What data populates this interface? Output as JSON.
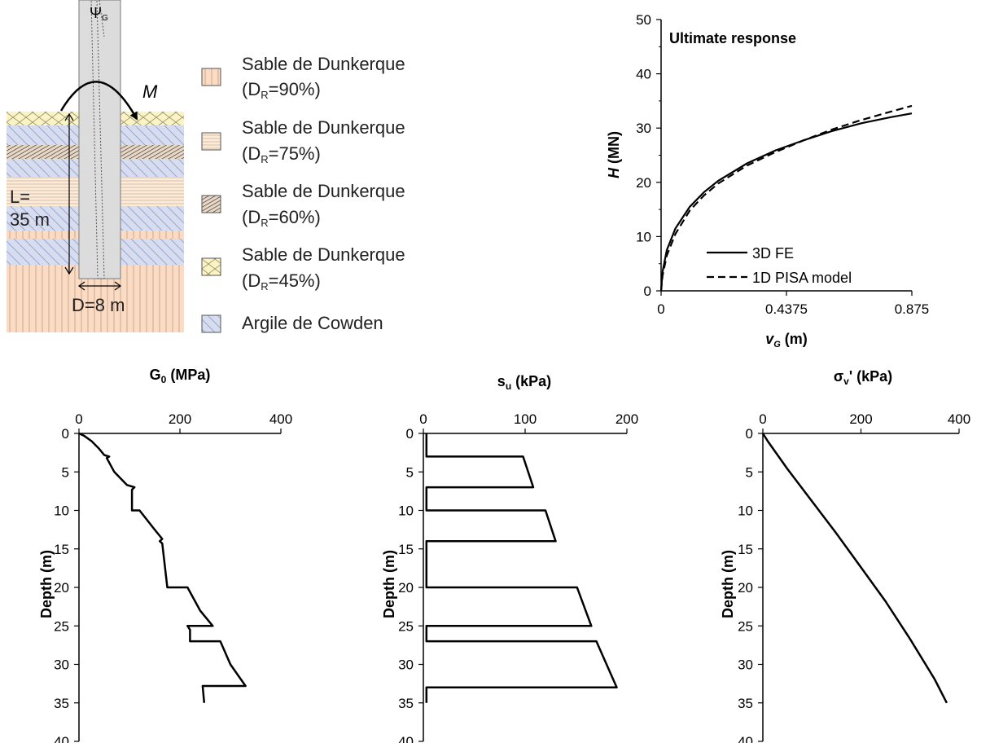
{
  "colors": {
    "sand_90": "#fadbc4",
    "sand_75": "#fcebd8",
    "sand_60": "#ead8c6",
    "sand_45": "#fbf3c3",
    "clay": "#d7dcee",
    "pile": "#dcdcdc",
    "line": "#000000",
    "hatch": "#8ea0c8"
  },
  "schematic": {
    "psi_label": "ΨG",
    "psi_main": "Ψ",
    "psi_sub": "G",
    "moment_label": "M",
    "length_label_1": "L=",
    "length_label_2": "35 m",
    "diameter_label": "D=8 m",
    "legend": [
      {
        "title": "Sable de Dunkerque",
        "detail_pre": "(D",
        "detail_sub": "R",
        "detail_post": "=90%)",
        "swatch": "sand-90-swatch"
      },
      {
        "title": "Sable de Dunkerque",
        "detail_pre": "(D",
        "detail_sub": "R",
        "detail_post": "=75%)",
        "swatch": "sand-75-swatch"
      },
      {
        "title": "Sable de Dunkerque",
        "detail_pre": "(D",
        "detail_sub": "R",
        "detail_post": "=60%)",
        "swatch": "sand-60-swatch"
      },
      {
        "title": "Sable de Dunkerque",
        "detail_pre": "(D",
        "detail_sub": "R",
        "detail_post": "=45%)",
        "swatch": "sand-45-swatch"
      },
      {
        "title": "Argile de Cowden",
        "detail_pre": "",
        "detail_sub": "",
        "detail_post": "",
        "swatch": "clay-swatch"
      }
    ]
  },
  "chart_data": [
    {
      "type": "line",
      "title": "Ultimate response",
      "xlabel_main": "v",
      "xlabel_sub": "G",
      "xlabel_unit": " (m)",
      "ylabel_main": "H",
      "ylabel_unit": " (MN)",
      "xlim": [
        0,
        0.875
      ],
      "ylim": [
        0,
        50
      ],
      "xticks": [
        "0",
        "0.4375",
        "0.875"
      ],
      "xtick_values": [
        0,
        0.4375,
        0.875
      ],
      "yticks": [
        "0",
        "10",
        "20",
        "30",
        "40",
        "50"
      ],
      "ytick_values": [
        0,
        10,
        20,
        30,
        40,
        50
      ],
      "legend_position": "bottom-right",
      "series": [
        {
          "name": "3D FE",
          "style": "solid",
          "x": [
            0,
            0.005,
            0.02,
            0.05,
            0.1,
            0.15,
            0.2,
            0.3,
            0.4,
            0.5,
            0.6,
            0.7,
            0.8,
            0.875
          ],
          "y": [
            0,
            3.5,
            7.5,
            11.5,
            15.5,
            18.2,
            20.3,
            23.5,
            25.9,
            27.8,
            29.5,
            30.9,
            32.0,
            32.7
          ]
        },
        {
          "name": "1D PISA model",
          "style": "dashed",
          "x": [
            0,
            0.005,
            0.02,
            0.05,
            0.1,
            0.15,
            0.2,
            0.3,
            0.4,
            0.5,
            0.6,
            0.7,
            0.8,
            0.875
          ],
          "y": [
            0,
            2.8,
            6.5,
            10.5,
            14.8,
            17.6,
            19.8,
            23.1,
            25.6,
            27.8,
            29.8,
            31.5,
            33.0,
            34.1
          ]
        }
      ]
    },
    {
      "type": "line",
      "title_main": "G",
      "title_sub": "0",
      "title_unit": " (MPa)",
      "ylabel": "Depth (m)",
      "xlim": [
        0,
        400
      ],
      "ylim": [
        0,
        40
      ],
      "xticks": [
        "0",
        "200",
        "400"
      ],
      "xtick_values": [
        0,
        200,
        400
      ],
      "yticks": [
        "0",
        "5",
        "10",
        "15",
        "20",
        "25",
        "30",
        "35",
        "40"
      ],
      "ytick_values": [
        0,
        5,
        10,
        15,
        20,
        25,
        30,
        35,
        40
      ],
      "series": [
        {
          "x": [
            0,
            10,
            25,
            40,
            50,
            60,
            55,
            70,
            95,
            110,
            105,
            105,
            120,
            150,
            165,
            160,
            165,
            175,
            215,
            240,
            265,
            215,
            220,
            220,
            280,
            300,
            330,
            245,
            248
          ],
          "y": [
            0,
            0.3,
            1,
            2,
            2.8,
            3,
            3.2,
            5,
            6.7,
            7,
            7.3,
            10,
            10,
            12.5,
            13.7,
            14,
            14.3,
            20,
            20,
            23,
            25,
            25,
            25.5,
            27,
            27,
            30,
            32.8,
            32.8,
            35
          ]
        }
      ]
    },
    {
      "type": "line",
      "title_main": "s",
      "title_sub": "u",
      "title_unit": " (kPa)",
      "ylabel": "Depth (m)",
      "xlim": [
        0,
        200
      ],
      "ylim": [
        0,
        40
      ],
      "xticks": [
        "0",
        "100",
        "200"
      ],
      "xtick_values": [
        0,
        100,
        200
      ],
      "yticks": [
        "0",
        "5",
        "10",
        "15",
        "20",
        "25",
        "30",
        "35",
        "40"
      ],
      "ytick_values": [
        0,
        5,
        10,
        15,
        20,
        25,
        30,
        35,
        40
      ],
      "series": [
        {
          "x": [
            3,
            3,
            98,
            108,
            3,
            3,
            120,
            130,
            3,
            3,
            151,
            165,
            3,
            3,
            170,
            190,
            3,
            3
          ],
          "y": [
            0,
            3,
            3,
            7,
            7,
            10,
            10,
            14,
            14,
            20,
            20,
            25,
            25,
            27,
            27,
            33,
            33,
            35
          ]
        }
      ]
    },
    {
      "type": "line",
      "title_main": "σ",
      "title_sub": "v",
      "title_unit": "' (kPa)",
      "ylabel": "Depth (m)",
      "xlim": [
        0,
        400
      ],
      "ylim": [
        0,
        40
      ],
      "xticks": [
        "0",
        "200",
        "400"
      ],
      "xtick_values": [
        0,
        200,
        400
      ],
      "yticks": [
        "0",
        "5",
        "10",
        "15",
        "20",
        "25",
        "30",
        "35",
        "40"
      ],
      "ytick_values": [
        0,
        5,
        10,
        15,
        20,
        25,
        30,
        35,
        40
      ],
      "series": [
        {
          "x": [
            0,
            10,
            50,
            100,
            150,
            200,
            250,
            300,
            350,
            375
          ],
          "y": [
            0,
            1,
            4.6,
            8.8,
            13,
            17.4,
            21.8,
            26.7,
            31.9,
            35
          ]
        }
      ]
    }
  ]
}
